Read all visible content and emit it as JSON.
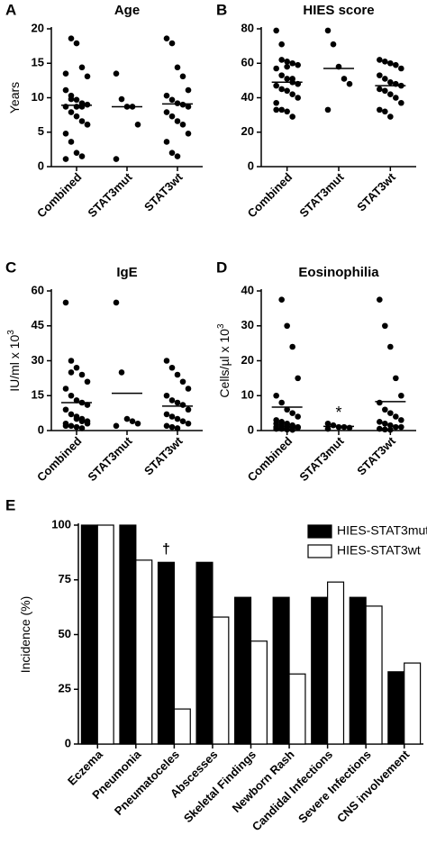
{
  "chart_data": [
    {
      "type": "strip",
      "panel_label": "A",
      "title": "Age",
      "y_label": "Years",
      "categories": [
        "Combined",
        "STAT3mut",
        "STAT3wt"
      ],
      "values": [
        [
          13.5,
          9.8,
          8.7,
          8.7,
          6.1,
          1.1,
          18.6,
          17.9,
          14.4,
          13.1,
          11.1,
          10.3,
          9.7,
          9.2,
          9.0,
          8.7,
          7.9,
          7.3,
          6.6,
          6.1,
          4.8,
          3.6,
          2.0,
          1.5
        ],
        [
          13.5,
          9.8,
          8.7,
          8.7,
          6.1,
          1.1
        ],
        [
          18.6,
          17.9,
          14.4,
          13.1,
          11.1,
          10.3,
          9.7,
          9.2,
          9.0,
          8.7,
          7.9,
          7.3,
          6.6,
          6.1,
          4.8,
          3.6,
          2.0,
          1.5
        ]
      ],
      "means": [
        8.9,
        8.7,
        9.1
      ],
      "ylim": [
        0,
        20
      ],
      "yticks": [
        0,
        5,
        10,
        15,
        20
      ]
    },
    {
      "type": "strip",
      "panel_label": "B",
      "title": "HIES score",
      "categories": [
        "Combined",
        "STAT3mut",
        "STAT3wt"
      ],
      "values": [
        [
          79,
          71,
          58,
          51,
          48,
          33,
          62,
          61,
          60,
          59,
          57,
          53,
          51,
          49,
          48,
          47,
          45,
          44,
          42,
          40,
          37,
          33,
          32,
          29
        ],
        [
          79,
          71,
          58,
          51,
          48,
          33
        ],
        [
          62,
          61,
          60,
          59,
          57,
          53,
          51,
          49,
          48,
          47,
          45,
          44,
          42,
          40,
          37,
          33,
          32,
          29
        ]
      ],
      "means": [
        49,
        57,
        47
      ],
      "ylim": [
        0,
        80
      ],
      "yticks": [
        0,
        20,
        40,
        60,
        80
      ]
    },
    {
      "type": "strip",
      "panel_label": "C",
      "title": "IgE",
      "y_label": "IU/ml x 10",
      "y_label_sup": "3",
      "categories": [
        "Combined",
        "STAT3mut",
        "STAT3wt"
      ],
      "values": [
        [
          55,
          25,
          5,
          4,
          3,
          2,
          30,
          27,
          24,
          21,
          18,
          15,
          13,
          12,
          11,
          9,
          7,
          6,
          5,
          4,
          3,
          2,
          1.5,
          1
        ],
        [
          55,
          25,
          5,
          4,
          3,
          2
        ],
        [
          30,
          27,
          24,
          21,
          18,
          15,
          13,
          12,
          11,
          9,
          7,
          6,
          5,
          4,
          3,
          2,
          1.5,
          1
        ]
      ],
      "means": [
        12,
        16,
        10.5
      ],
      "ylim": [
        0,
        60
      ],
      "yticks": [
        0,
        15,
        30,
        45,
        60
      ]
    },
    {
      "type": "strip",
      "panel_label": "D",
      "title": "Eosinophilia",
      "y_label": "Cells/µl x 10",
      "y_label_sup": "3",
      "categories": [
        "Combined",
        "STAT3mut",
        "STAT3wt"
      ],
      "values": [
        [
          2,
          1.5,
          1,
          1,
          0.8,
          0.5,
          37.5,
          30,
          24,
          15,
          10,
          8,
          6,
          5,
          4,
          3,
          2.5,
          2,
          1.5,
          1,
          1,
          0.5,
          0.3,
          0.2
        ],
        [
          2,
          1.5,
          1,
          1,
          0.8,
          0.5
        ],
        [
          37.5,
          30,
          24,
          15,
          10,
          8,
          6,
          5,
          4,
          3,
          2.5,
          2,
          1.5,
          1,
          1,
          0.5,
          0.3,
          0.2
        ]
      ],
      "means": [
        6.7,
        1.2,
        8.3
      ],
      "ylim": [
        0,
        40
      ],
      "yticks": [
        0,
        10,
        20,
        30,
        40
      ],
      "annotations": [
        {
          "text": "*",
          "category": "STAT3mut"
        }
      ]
    },
    {
      "type": "bar",
      "panel_label": "E",
      "y_label": "Incidence (%)",
      "categories": [
        "Eczema",
        "Pneumonia",
        "Pneumatoceles",
        "Abscesses",
        "Skeletal Findings",
        "Newborn Rash",
        "Candidal Infections",
        "Severe Infections",
        "CNS involvement"
      ],
      "series": [
        {
          "name": "HIES-STAT3mut",
          "color": "#000000",
          "values": [
            100,
            100,
            83,
            83,
            67,
            67,
            67,
            67,
            33
          ]
        },
        {
          "name": "HIES-STAT3wt",
          "color": "#ffffff",
          "values": [
            100,
            84,
            16,
            58,
            47,
            32,
            74,
            63,
            37
          ]
        }
      ],
      "ylim": [
        0,
        100
      ],
      "yticks": [
        0,
        25,
        50,
        75,
        100
      ],
      "legend": "top-right",
      "annotations": [
        {
          "text": "†",
          "category": "Pneumatoceles"
        }
      ]
    }
  ]
}
